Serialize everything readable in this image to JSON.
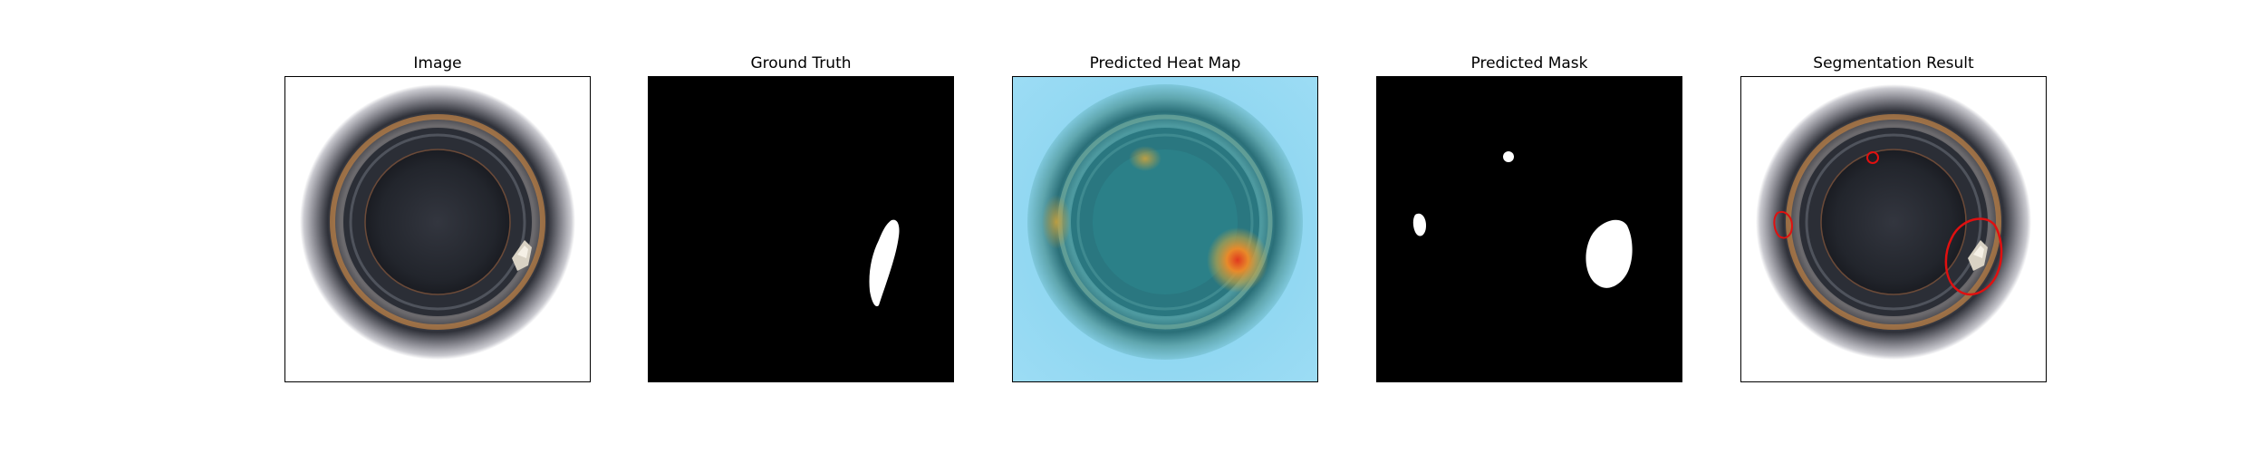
{
  "figure": {
    "panels": [
      {
        "title": "Image"
      },
      {
        "title": "Ground Truth"
      },
      {
        "title": "Predicted Heat Map"
      },
      {
        "title": "Predicted Mask"
      },
      {
        "title": "Segmentation Result"
      }
    ]
  },
  "colors": {
    "background": "#ffffff",
    "mask_fill": "#ffffff",
    "mask_background": "#000000",
    "contour": "#e01010",
    "heatmap_cold": "#8ad6f2",
    "heatmap_hot": "#e03a1e"
  }
}
